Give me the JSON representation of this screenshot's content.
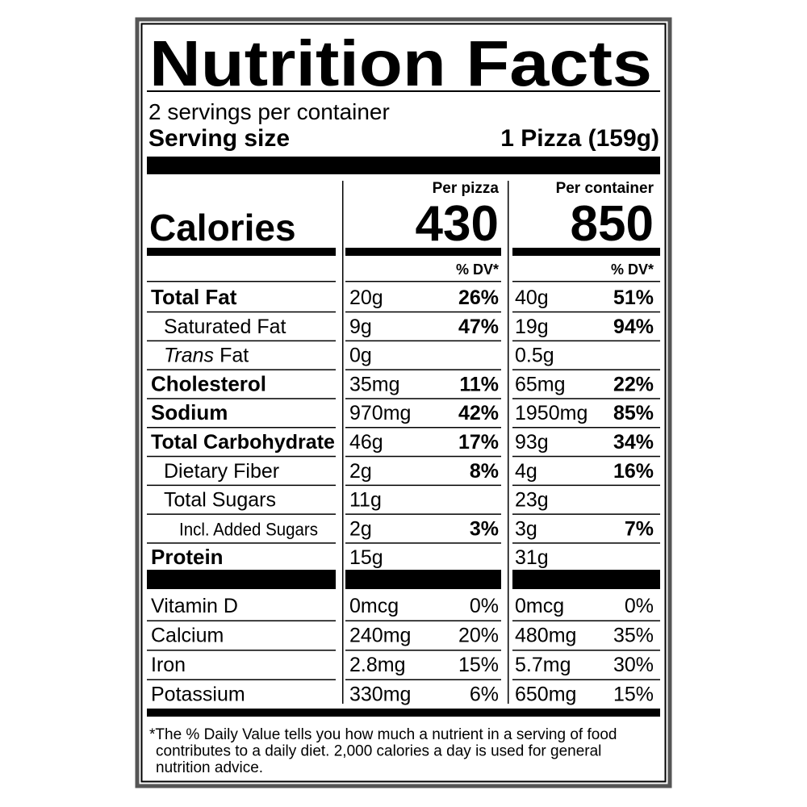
{
  "header": {
    "title": "Nutrition Facts",
    "servings": "2 servings per container",
    "serving_size_label": "Serving size",
    "serving_size": "1 Pizza (159g)"
  },
  "calories": {
    "label": "Calories",
    "columns": [
      {
        "heading": "Per pizza",
        "value": 430,
        "dv_heading": "% DV*"
      },
      {
        "heading": "Per container",
        "value": 850,
        "dv_heading": "% DV*"
      }
    ]
  },
  "nutrients": [
    {
      "label": "Total Fat",
      "amounts": [
        "20g",
        "40g"
      ],
      "dvs": [
        "26%",
        "51%"
      ]
    },
    {
      "label": "Saturated Fat",
      "amounts": [
        "9g",
        "19g"
      ],
      "dvs": [
        "47%",
        "94%"
      ]
    },
    {
      "label_italic": "Trans",
      "label": "Fat",
      "amounts": [
        "0g",
        "0.5g"
      ]
    },
    {
      "label": "Cholesterol",
      "amounts": [
        "35mg",
        "65mg"
      ],
      "dvs": [
        "11%",
        "22%"
      ]
    },
    {
      "label": "Sodium",
      "amounts": [
        "970mg",
        "1950mg"
      ],
      "dvs": [
        "42%",
        "85%"
      ]
    },
    {
      "label": "Total Carbohydrate",
      "amounts": [
        "46g",
        "93g"
      ],
      "dvs": [
        "17%",
        "34%"
      ]
    },
    {
      "label": "Dietary Fiber",
      "amounts": [
        "2g",
        "4g"
      ],
      "dvs": [
        "8%",
        "16%"
      ]
    },
    {
      "label": "Total Sugars",
      "amounts": [
        "11g",
        "23g"
      ]
    },
    {
      "label": "Incl. Added Sugars",
      "amounts": [
        "2g",
        "3g"
      ],
      "dvs": [
        "3%",
        "7%"
      ]
    },
    {
      "label": "Protein",
      "amounts": [
        "15g",
        "31g"
      ]
    }
  ],
  "vitamins": [
    {
      "label": "Vitamin D",
      "amounts": [
        "0mcg",
        "0mcg"
      ],
      "dvs": [
        "0%",
        "0%"
      ]
    },
    {
      "label": "Calcium",
      "amounts": [
        "240mg",
        "480mg"
      ],
      "dvs": [
        "20%",
        "35%"
      ]
    },
    {
      "label": "Iron",
      "amounts": [
        "2.8mg",
        "5.7mg"
      ],
      "dvs": [
        "15%",
        "30%"
      ]
    },
    {
      "label": "Potassium",
      "amounts": [
        "330mg",
        "650mg"
      ],
      "dvs": [
        "6%",
        "15%"
      ]
    }
  ],
  "footnote": [
    "*The % Daily Value tells you how much a nutrient in a serving of food",
    "contributes to a daily diet. 2,000 calories a day is used for general",
    "nutrition advice."
  ]
}
